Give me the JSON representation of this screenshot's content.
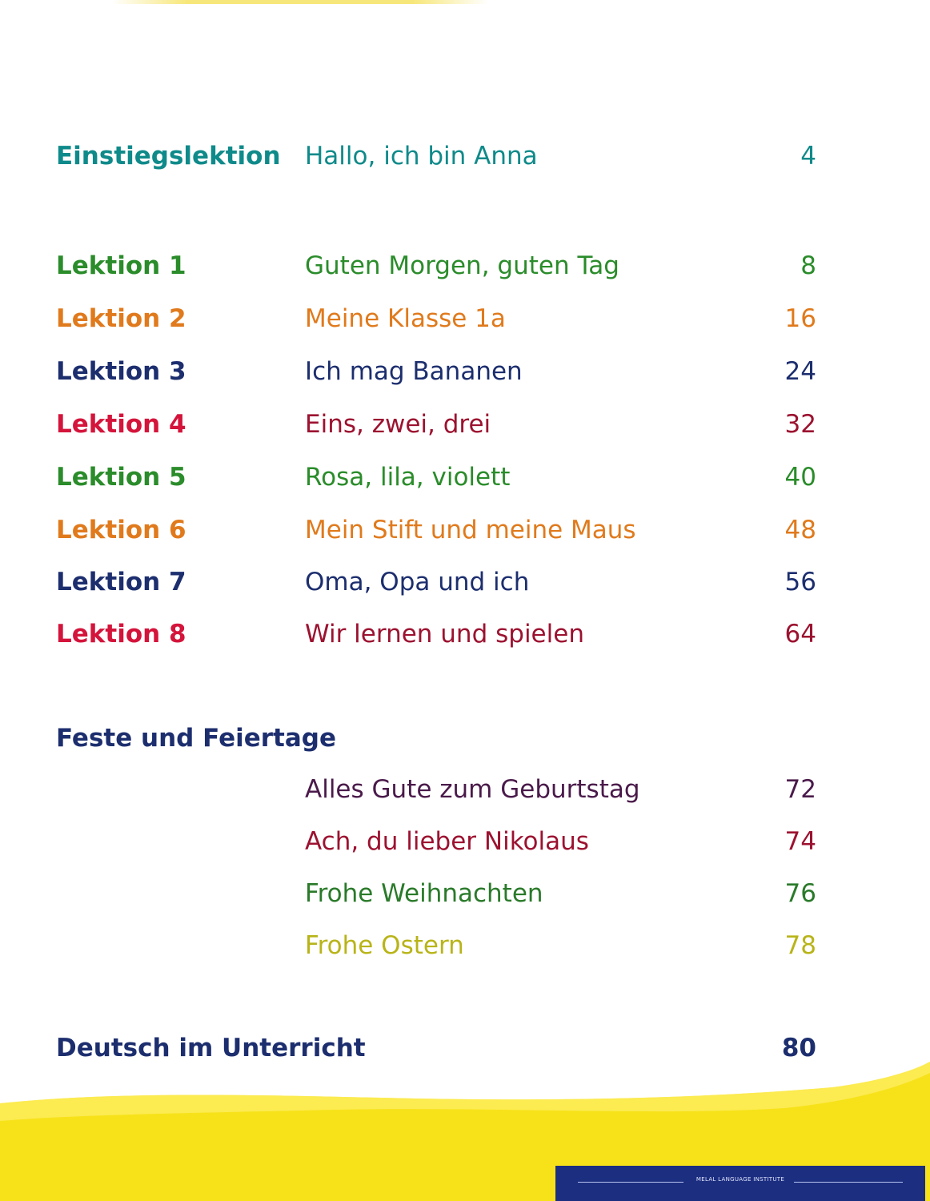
{
  "colors": {
    "teal": "#0f8a8a",
    "green": "#2a8c2a",
    "orange": "#e07a1c",
    "navy": "#1c2e6e",
    "red": "#d4143b",
    "purple": "#4a1a4a",
    "crimson": "#9c1230",
    "olive_yellow": "#b8b418",
    "yellow": "#f7e21a"
  },
  "intro": {
    "label": "Einstiegslektion",
    "title": "Hallo, ich bin Anna",
    "page": "4"
  },
  "lessons": [
    {
      "label": "Lektion 1",
      "title": "Guten Morgen, guten Tag",
      "page": "8"
    },
    {
      "label": "Lektion 2",
      "title": "Meine Klasse 1a",
      "page": "16"
    },
    {
      "label": "Lektion 3",
      "title": "Ich mag Bananen",
      "page": "24"
    },
    {
      "label": "Lektion 4",
      "title": "Eins, zwei, drei",
      "page": "32"
    },
    {
      "label": "Lektion 5",
      "title": "Rosa, lila, violett",
      "page": "40"
    },
    {
      "label": "Lektion 6",
      "title": "Mein Stift und meine Maus",
      "page": "48"
    },
    {
      "label": "Lektion 7",
      "title": "Oma, Opa und ich",
      "page": "56"
    },
    {
      "label": "Lektion 8",
      "title": "Wir lernen und spielen",
      "page": "64"
    }
  ],
  "festivals": {
    "heading": "Feste und Feiertage",
    "items": [
      {
        "title": "Alles Gute zum Geburtstag",
        "page": "72"
      },
      {
        "title": "Ach, du lieber Nikolaus",
        "page": "74"
      },
      {
        "title": "Frohe Weihnachten",
        "page": "76"
      },
      {
        "title": "Frohe Ostern",
        "page": "78"
      }
    ]
  },
  "classroom": {
    "label": "Deutsch im Unterricht",
    "page": "80"
  },
  "footer": {
    "text": "MELAL LANGUAGE INSTITUTE"
  }
}
